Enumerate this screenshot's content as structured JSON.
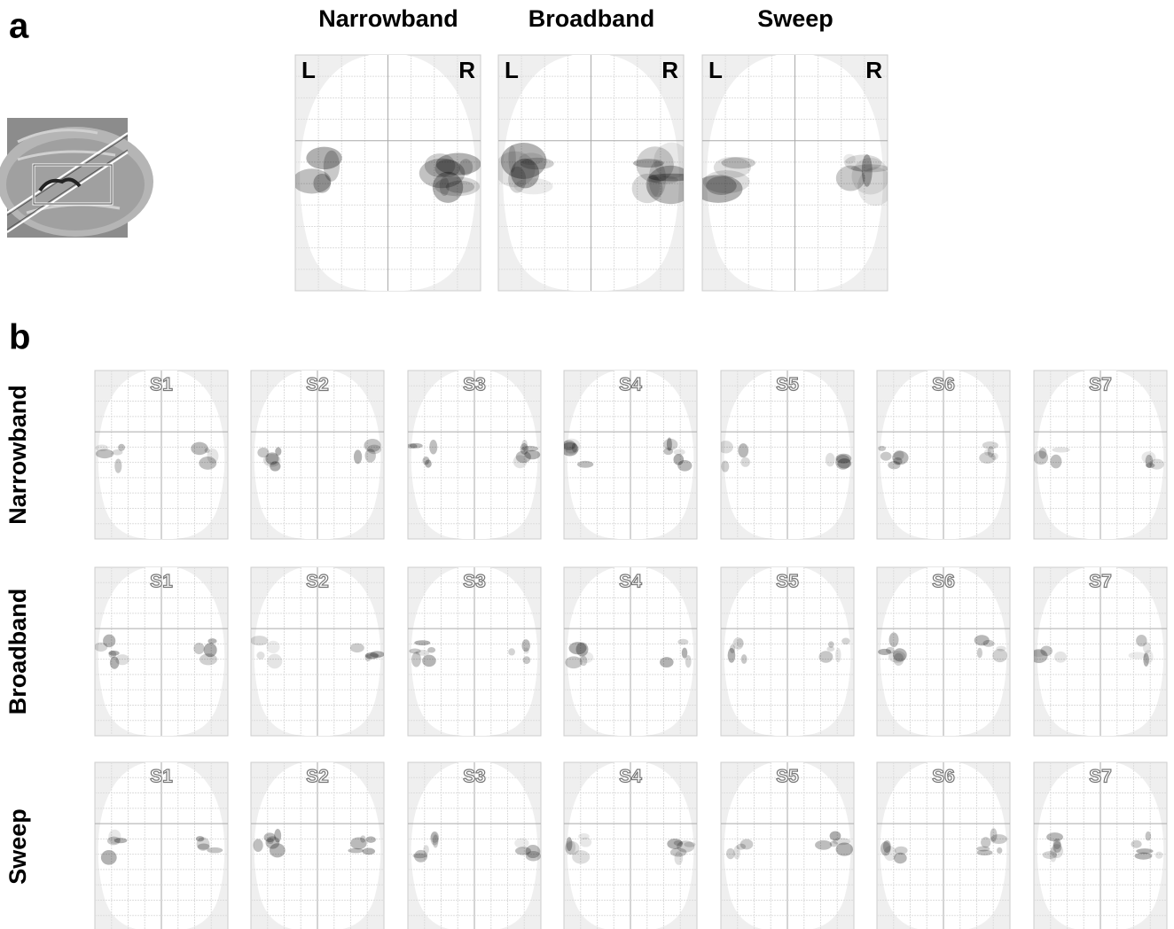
{
  "panel_a": {
    "label": "a",
    "columns": [
      {
        "title": "Narrowband",
        "left": "L",
        "right": "R"
      },
      {
        "title": "Broadband",
        "left": "L",
        "right": "R"
      },
      {
        "title": "Sweep",
        "left": "L",
        "right": "R"
      }
    ]
  },
  "panel_b": {
    "label": "b",
    "rows": [
      {
        "label": "Narrowband",
        "subjects": [
          "S1",
          "S2",
          "S3",
          "S4",
          "S5",
          "S6",
          "S7"
        ]
      },
      {
        "label": "Broadband",
        "subjects": [
          "S1",
          "S2",
          "S3",
          "S4",
          "S5",
          "S6",
          "S7"
        ]
      },
      {
        "label": "Sweep",
        "subjects": [
          "S1",
          "S2",
          "S3",
          "S4",
          "S5",
          "S6",
          "S7"
        ]
      }
    ]
  }
}
